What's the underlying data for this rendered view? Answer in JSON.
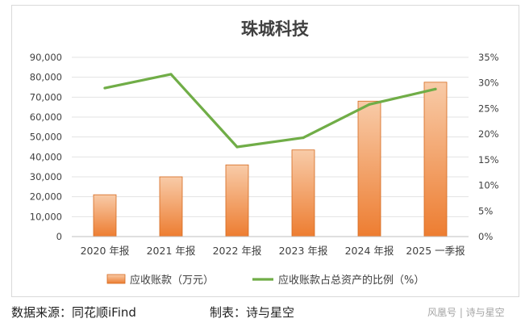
{
  "chart_data": {
    "type": "bar",
    "title": "珠城科技",
    "categories": [
      "2020 年报",
      "2021 年报",
      "2022 年报",
      "2023 年报",
      "2024 年报",
      "2025 一季报"
    ],
    "series": [
      {
        "name": "应收账款（万元）",
        "type": "bar",
        "axis": "left",
        "values": [
          21000,
          30000,
          36000,
          43500,
          68000,
          77500
        ]
      },
      {
        "name": "应收账款占总资产的比例（%）",
        "type": "line",
        "axis": "right",
        "values": [
          29.0,
          31.7,
          17.5,
          19.3,
          25.8,
          28.8
        ]
      }
    ],
    "y_left": {
      "range": [
        0,
        90000
      ],
      "ticks": [
        "0",
        "10,000",
        "20,000",
        "30,000",
        "40,000",
        "50,000",
        "60,000",
        "70,000",
        "80,000",
        "90,000"
      ]
    },
    "y_right": {
      "range": [
        0,
        35
      ],
      "ticks": [
        "0%",
        "5%",
        "10%",
        "15%",
        "20%",
        "25%",
        "30%",
        "35%"
      ]
    },
    "grid": true,
    "legend": "bottom",
    "colors": {
      "bar_top": "#f8cba8",
      "bar_bottom": "#ed7d31",
      "bar_edge": "#d5691e",
      "line": "#70ad47",
      "grid": "#e3e3e3"
    }
  },
  "footer": {
    "source": "数据来源：同花顺iFind",
    "maker": "制表：诗与星空",
    "watermark": "风凰号 | 诗与星空"
  }
}
